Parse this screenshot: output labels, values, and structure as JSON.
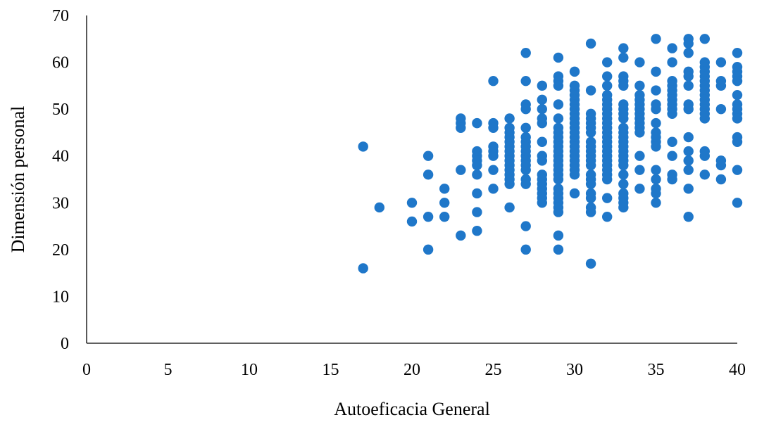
{
  "chart_data": {
    "type": "scatter",
    "title": "",
    "xlabel": "Autoeficacia General",
    "ylabel": "Dimensión personal",
    "xlim": [
      0,
      40
    ],
    "ylim": [
      0,
      70
    ],
    "xticks": [
      "0",
      "5",
      "10",
      "15",
      "20",
      "25",
      "30",
      "35",
      "40"
    ],
    "yticks": [
      "0",
      "10",
      "20",
      "30",
      "40",
      "50",
      "60",
      "70"
    ],
    "grid": false,
    "legend": "none",
    "marker_color": "#1f77c9",
    "points": [
      [
        17,
        42
      ],
      [
        17,
        16
      ],
      [
        18,
        29
      ],
      [
        20,
        30
      ],
      [
        20,
        26
      ],
      [
        21,
        40
      ],
      [
        21,
        36
      ],
      [
        21,
        27
      ],
      [
        21,
        20
      ],
      [
        22,
        33
      ],
      [
        22,
        30
      ],
      [
        22,
        27
      ],
      [
        23,
        48
      ],
      [
        23,
        47
      ],
      [
        23,
        46
      ],
      [
        23,
        37
      ],
      [
        23,
        23
      ],
      [
        24,
        47
      ],
      [
        24,
        41
      ],
      [
        24,
        40
      ],
      [
        24,
        39
      ],
      [
        24,
        38
      ],
      [
        24,
        36
      ],
      [
        24,
        32
      ],
      [
        24,
        28
      ],
      [
        24,
        24
      ],
      [
        25,
        56
      ],
      [
        25,
        47
      ],
      [
        25,
        46
      ],
      [
        25,
        42
      ],
      [
        25,
        41
      ],
      [
        25,
        40
      ],
      [
        25,
        37
      ],
      [
        25,
        33
      ],
      [
        26,
        48
      ],
      [
        26,
        46
      ],
      [
        26,
        45
      ],
      [
        26,
        44
      ],
      [
        26,
        43
      ],
      [
        26,
        42
      ],
      [
        26,
        41
      ],
      [
        26,
        40
      ],
      [
        26,
        39
      ],
      [
        26,
        38
      ],
      [
        26,
        37
      ],
      [
        26,
        36
      ],
      [
        26,
        35
      ],
      [
        26,
        34
      ],
      [
        26,
        29
      ],
      [
        27,
        62
      ],
      [
        27,
        56
      ],
      [
        27,
        51
      ],
      [
        27,
        50
      ],
      [
        27,
        46
      ],
      [
        27,
        44
      ],
      [
        27,
        43
      ],
      [
        27,
        42
      ],
      [
        27,
        41
      ],
      [
        27,
        40
      ],
      [
        27,
        39
      ],
      [
        27,
        38
      ],
      [
        27,
        37
      ],
      [
        27,
        35
      ],
      [
        27,
        34
      ],
      [
        27,
        25
      ],
      [
        27,
        20
      ],
      [
        28,
        55
      ],
      [
        28,
        52
      ],
      [
        28,
        50
      ],
      [
        28,
        48
      ],
      [
        28,
        47
      ],
      [
        28,
        43
      ],
      [
        28,
        40
      ],
      [
        28,
        39
      ],
      [
        28,
        36
      ],
      [
        28,
        35
      ],
      [
        28,
        34
      ],
      [
        28,
        33
      ],
      [
        28,
        32
      ],
      [
        28,
        31
      ],
      [
        28,
        30
      ],
      [
        29,
        61
      ],
      [
        29,
        57
      ],
      [
        29,
        56
      ],
      [
        29,
        55
      ],
      [
        29,
        51
      ],
      [
        29,
        48
      ],
      [
        29,
        46
      ],
      [
        29,
        45
      ],
      [
        29,
        44
      ],
      [
        29,
        43
      ],
      [
        29,
        42
      ],
      [
        29,
        41
      ],
      [
        29,
        40
      ],
      [
        29,
        39
      ],
      [
        29,
        38
      ],
      [
        29,
        37
      ],
      [
        29,
        36
      ],
      [
        29,
        35
      ],
      [
        29,
        33
      ],
      [
        29,
        32
      ],
      [
        29,
        31
      ],
      [
        29,
        30
      ],
      [
        29,
        29
      ],
      [
        29,
        28
      ],
      [
        29,
        23
      ],
      [
        29,
        20
      ],
      [
        30,
        58
      ],
      [
        30,
        55
      ],
      [
        30,
        54
      ],
      [
        30,
        53
      ],
      [
        30,
        52
      ],
      [
        30,
        51
      ],
      [
        30,
        50
      ],
      [
        30,
        49
      ],
      [
        30,
        48
      ],
      [
        30,
        47
      ],
      [
        30,
        46
      ],
      [
        30,
        45
      ],
      [
        30,
        44
      ],
      [
        30,
        43
      ],
      [
        30,
        42
      ],
      [
        30,
        41
      ],
      [
        30,
        40
      ],
      [
        30,
        39
      ],
      [
        30,
        38
      ],
      [
        30,
        37
      ],
      [
        30,
        36
      ],
      [
        30,
        32
      ],
      [
        31,
        64
      ],
      [
        31,
        54
      ],
      [
        31,
        49
      ],
      [
        31,
        48
      ],
      [
        31,
        47
      ],
      [
        31,
        46
      ],
      [
        31,
        45
      ],
      [
        31,
        43
      ],
      [
        31,
        42
      ],
      [
        31,
        41
      ],
      [
        31,
        40
      ],
      [
        31,
        39
      ],
      [
        31,
        38
      ],
      [
        31,
        36
      ],
      [
        31,
        35
      ],
      [
        31,
        34
      ],
      [
        31,
        32
      ],
      [
        31,
        31
      ],
      [
        31,
        29
      ],
      [
        31,
        28
      ],
      [
        31,
        17
      ],
      [
        32,
        60
      ],
      [
        32,
        57
      ],
      [
        32,
        55
      ],
      [
        32,
        53
      ],
      [
        32,
        52
      ],
      [
        32,
        51
      ],
      [
        32,
        50
      ],
      [
        32,
        49
      ],
      [
        32,
        48
      ],
      [
        32,
        47
      ],
      [
        32,
        46
      ],
      [
        32,
        45
      ],
      [
        32,
        44
      ],
      [
        32,
        43
      ],
      [
        32,
        42
      ],
      [
        32,
        41
      ],
      [
        32,
        40
      ],
      [
        32,
        39
      ],
      [
        32,
        38
      ],
      [
        32,
        37
      ],
      [
        32,
        36
      ],
      [
        32,
        35
      ],
      [
        32,
        31
      ],
      [
        32,
        27
      ],
      [
        33,
        63
      ],
      [
        33,
        61
      ],
      [
        33,
        57
      ],
      [
        33,
        56
      ],
      [
        33,
        55
      ],
      [
        33,
        51
      ],
      [
        33,
        50
      ],
      [
        33,
        49
      ],
      [
        33,
        48
      ],
      [
        33,
        46
      ],
      [
        33,
        45
      ],
      [
        33,
        44
      ],
      [
        33,
        43
      ],
      [
        33,
        42
      ],
      [
        33,
        41
      ],
      [
        33,
        40
      ],
      [
        33,
        39
      ],
      [
        33,
        38
      ],
      [
        33,
        36
      ],
      [
        33,
        34
      ],
      [
        33,
        32
      ],
      [
        33,
        31
      ],
      [
        33,
        30
      ],
      [
        33,
        29
      ],
      [
        34,
        60
      ],
      [
        34,
        55
      ],
      [
        34,
        53
      ],
      [
        34,
        52
      ],
      [
        34,
        51
      ],
      [
        34,
        50
      ],
      [
        34,
        49
      ],
      [
        34,
        48
      ],
      [
        34,
        47
      ],
      [
        34,
        46
      ],
      [
        34,
        45
      ],
      [
        34,
        40
      ],
      [
        34,
        37
      ],
      [
        34,
        33
      ],
      [
        35,
        65
      ],
      [
        35,
        58
      ],
      [
        35,
        54
      ],
      [
        35,
        51
      ],
      [
        35,
        50
      ],
      [
        35,
        47
      ],
      [
        35,
        45
      ],
      [
        35,
        44
      ],
      [
        35,
        43
      ],
      [
        35,
        42
      ],
      [
        35,
        37
      ],
      [
        35,
        35
      ],
      [
        35,
        33
      ],
      [
        35,
        32
      ],
      [
        35,
        30
      ],
      [
        36,
        63
      ],
      [
        36,
        60
      ],
      [
        36,
        56
      ],
      [
        36,
        55
      ],
      [
        36,
        54
      ],
      [
        36,
        53
      ],
      [
        36,
        52
      ],
      [
        36,
        51
      ],
      [
        36,
        50
      ],
      [
        36,
        49
      ],
      [
        36,
        43
      ],
      [
        36,
        40
      ],
      [
        36,
        36
      ],
      [
        36,
        35
      ],
      [
        37,
        65
      ],
      [
        37,
        64
      ],
      [
        37,
        62
      ],
      [
        37,
        58
      ],
      [
        37,
        57
      ],
      [
        37,
        55
      ],
      [
        37,
        51
      ],
      [
        37,
        50
      ],
      [
        37,
        44
      ],
      [
        37,
        41
      ],
      [
        37,
        39
      ],
      [
        37,
        37
      ],
      [
        37,
        33
      ],
      [
        37,
        27
      ],
      [
        38,
        65
      ],
      [
        38,
        60
      ],
      [
        38,
        59
      ],
      [
        38,
        58
      ],
      [
        38,
        57
      ],
      [
        38,
        56
      ],
      [
        38,
        55
      ],
      [
        38,
        54
      ],
      [
        38,
        53
      ],
      [
        38,
        52
      ],
      [
        38,
        51
      ],
      [
        38,
        50
      ],
      [
        38,
        49
      ],
      [
        38,
        48
      ],
      [
        38,
        41
      ],
      [
        38,
        40
      ],
      [
        38,
        36
      ],
      [
        39,
        60
      ],
      [
        39,
        56
      ],
      [
        39,
        55
      ],
      [
        39,
        50
      ],
      [
        39,
        39
      ],
      [
        39,
        38
      ],
      [
        39,
        35
      ],
      [
        40,
        62
      ],
      [
        40,
        59
      ],
      [
        40,
        58
      ],
      [
        40,
        57
      ],
      [
        40,
        56
      ],
      [
        40,
        53
      ],
      [
        40,
        51
      ],
      [
        40,
        50
      ],
      [
        40,
        49
      ],
      [
        40,
        48
      ],
      [
        40,
        44
      ],
      [
        40,
        43
      ],
      [
        40,
        37
      ],
      [
        40,
        30
      ]
    ]
  }
}
